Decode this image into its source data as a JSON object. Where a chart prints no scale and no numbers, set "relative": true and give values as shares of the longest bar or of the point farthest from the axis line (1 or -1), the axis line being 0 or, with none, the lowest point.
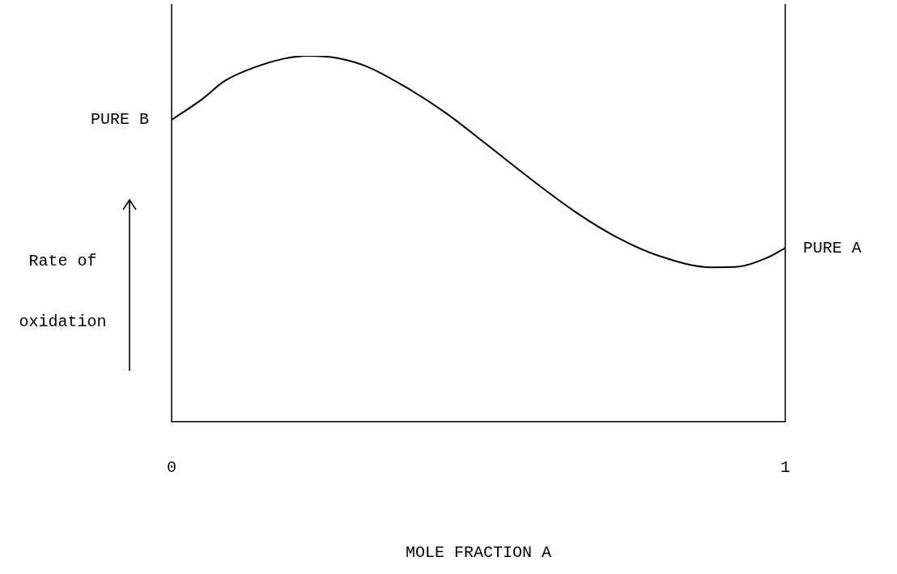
{
  "chart_data": {
    "type": "line",
    "relative": true,
    "xlabel": "MOLE FRACTION A",
    "ylabel": "Rate of oxidation",
    "x": [
      0,
      0.05,
      0.086,
      0.139,
      0.182,
      0.222,
      0.27,
      0.318,
      0.38,
      0.446,
      0.512,
      0.574,
      0.661,
      0.727,
      0.793,
      0.881,
      0.925,
      0.97,
      1
    ],
    "series": [
      {
        "color": "#000000",
        "values": [
          0.825,
          0.882,
          0.931,
          0.971,
          0.992,
          1,
          0.994,
          0.971,
          0.916,
          0.845,
          0.76,
          0.678,
          0.57,
          0.503,
          0.454,
          0.422,
          0.424,
          0.448,
          0.475
        ]
      }
    ],
    "xlim": [
      0,
      1
    ],
    "xticks": [
      0,
      1
    ],
    "grid": false,
    "legend": false,
    "marker": "none",
    "line_style": "solid",
    "annotations": [
      {
        "text": "PURE B",
        "x": 0,
        "y": 0.825
      },
      {
        "text": "PURE A",
        "x": 1,
        "y": 0.475
      }
    ]
  }
}
